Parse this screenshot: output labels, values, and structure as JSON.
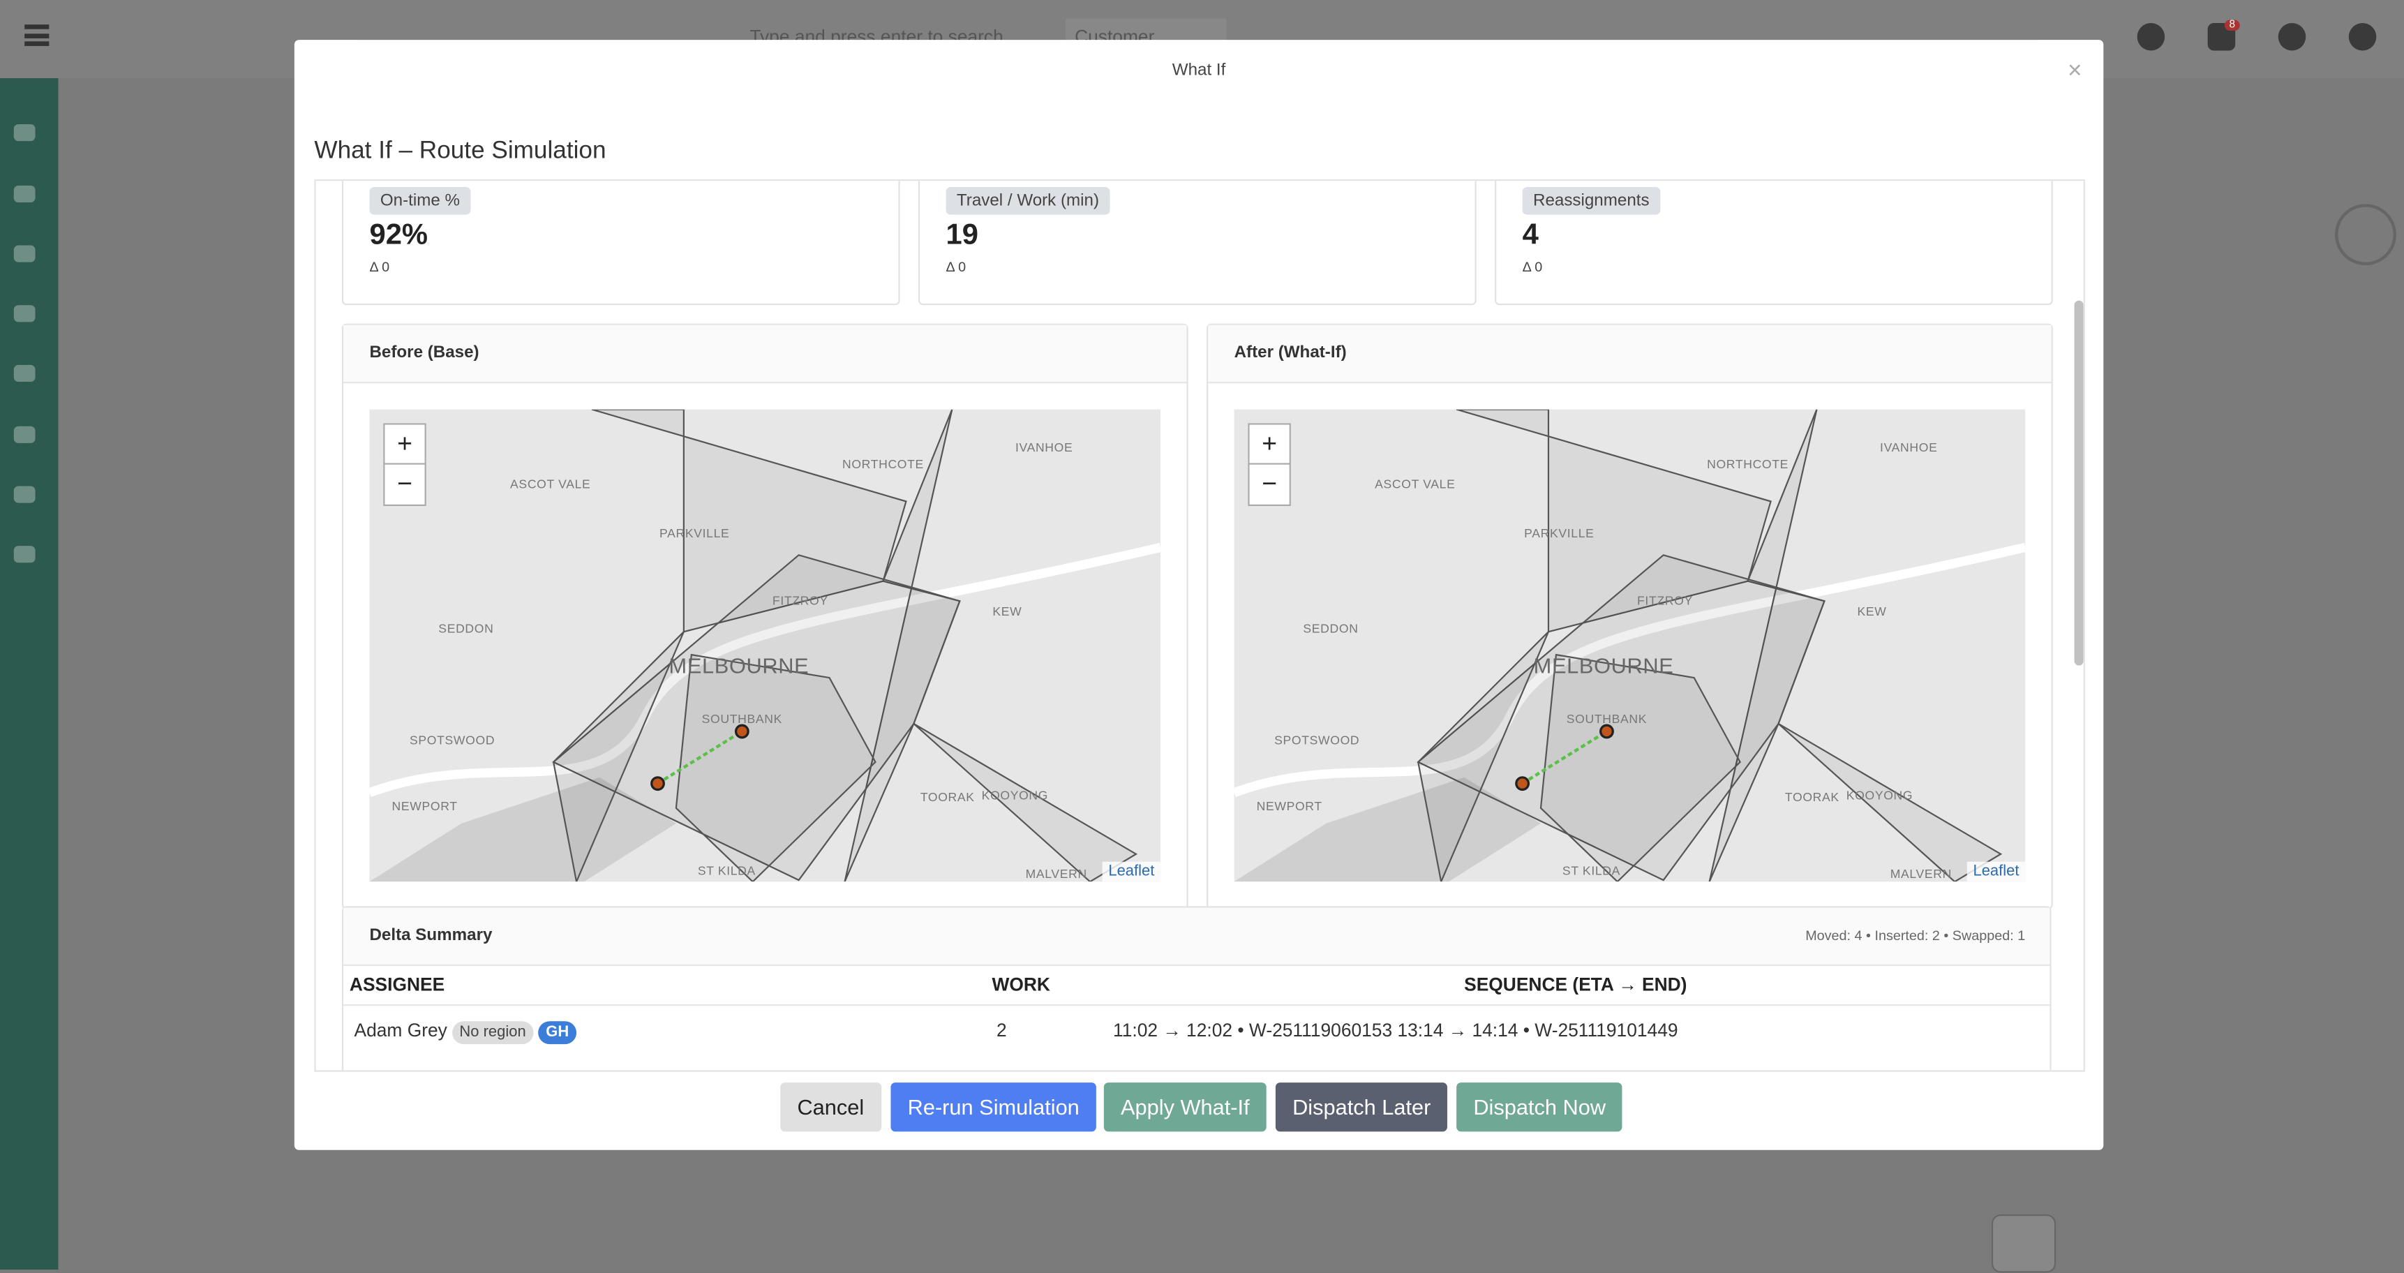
{
  "topbar": {
    "search_placeholder": "Type and press enter to search",
    "filter": "Customer",
    "notification_count": "8"
  },
  "modal": {
    "title": "What If",
    "close": "×",
    "heading": "What If – Route Simulation",
    "kpis": [
      {
        "label": "On-time %",
        "value": "92%",
        "delta": "Δ 0"
      },
      {
        "label": "Travel / Work (min)",
        "value": "19",
        "delta": "Δ 0"
      },
      {
        "label": "Reassignments",
        "value": "4",
        "delta": "Δ 0"
      }
    ],
    "maps": [
      {
        "title": "Before (Base)"
      },
      {
        "title": "After (What-If)"
      }
    ],
    "map_zoom_in": "+",
    "map_zoom_out": "−",
    "map_attribution": "Leaflet",
    "map_labels": [
      "ASCOT VALE",
      "PARKVILLE",
      "NORTHCOTE",
      "IVANHOE",
      "FITZROY",
      "KEW",
      "SEDDON",
      "MELBOURNE",
      "SOUTHBANK",
      "SPOTSWOOD",
      "NEWPORT",
      "TOORAK",
      "KOOYONG",
      "ST KILDA",
      "MALVERN"
    ],
    "delta_summary": {
      "title": "Delta Summary",
      "stats": "Moved: 4 • Inserted: 2 • Swapped: 1",
      "columns": [
        "ASSIGNEE",
        "WORK",
        "SEQUENCE (ETA → END)"
      ],
      "rows": [
        {
          "assignee": "Adam Grey",
          "tags": [
            "No region",
            "GH"
          ],
          "work": 2,
          "sequence": "11:02 → 12:02 • W-251119060153 13:14 → 14:14 • W-251119101449"
        }
      ]
    },
    "buttons": [
      "Cancel",
      "Re-run Simulation",
      "Apply What-If",
      "Dispatch Later",
      "Dispatch Now"
    ]
  }
}
